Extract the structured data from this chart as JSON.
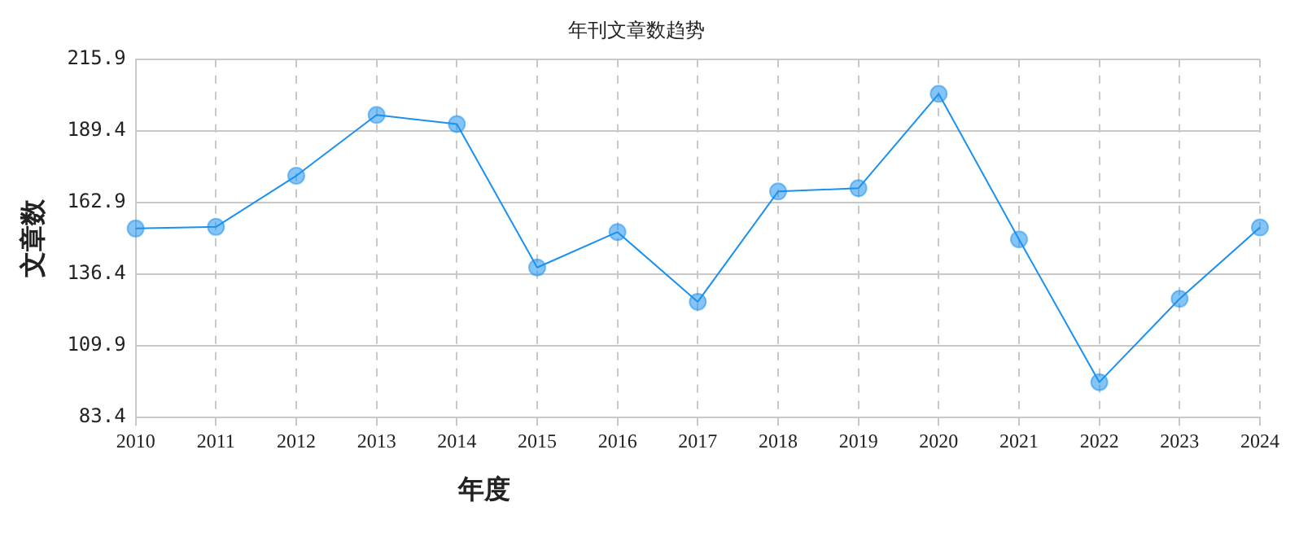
{
  "chart_data": {
    "type": "line",
    "title": "年刊文章数趋势",
    "xlabel": "年度",
    "ylabel": "文章数",
    "categories": [
      "2010",
      "2011",
      "2012",
      "2013",
      "2014",
      "2015",
      "2016",
      "2017",
      "2018",
      "2019",
      "2020",
      "2021",
      "2022",
      "2023",
      "2024"
    ],
    "series": [
      {
        "color": "#1a90f0",
        "values": [
          153.3,
          153.9,
          172.8,
          195.3,
          191.9,
          138.9,
          152.0,
          126.2,
          167.0,
          168.2,
          203.1,
          149.3,
          96.5,
          127.3,
          153.7
        ]
      }
    ],
    "ylim": [
      83.4,
      215.9
    ],
    "yticks": [
      83.4,
      109.9,
      136.4,
      162.9,
      189.4,
      215.9
    ],
    "grid": true,
    "legend": false,
    "marker": "circle",
    "line_style": "solid"
  }
}
